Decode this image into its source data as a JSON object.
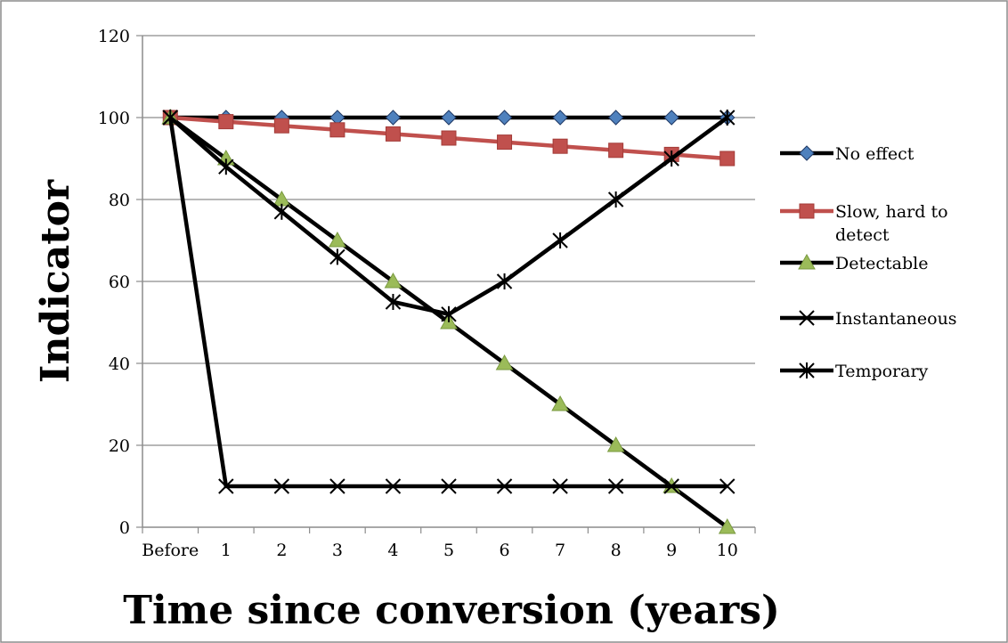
{
  "chart_data": {
    "type": "line",
    "xlabel": "Time since conversion (years)",
    "ylabel": "Indicator",
    "categories": [
      "Before",
      "1",
      "2",
      "3",
      "4",
      "5",
      "6",
      "7",
      "8",
      "9",
      "10"
    ],
    "ylim": [
      0,
      120
    ],
    "yticks": [
      0,
      20,
      40,
      60,
      80,
      100,
      120
    ],
    "grid": "horizontal",
    "legend_position": "right",
    "series": [
      {
        "name": "No effect",
        "color": "#000000",
        "marker": "diamond",
        "marker_color": "#4f81bd",
        "values": [
          100,
          100,
          100,
          100,
          100,
          100,
          100,
          100,
          100,
          100,
          100
        ]
      },
      {
        "name": "Slow, hard to detect",
        "color": "#c0504d",
        "marker": "square",
        "marker_color": "#c0504d",
        "values": [
          100,
          99,
          98,
          97,
          96,
          95,
          94,
          93,
          92,
          91,
          90
        ]
      },
      {
        "name": "Detectable",
        "color": "#000000",
        "marker": "triangle",
        "marker_color": "#9bbb59",
        "values": [
          100,
          90,
          80,
          70,
          60,
          50,
          40,
          30,
          20,
          10,
          0
        ]
      },
      {
        "name": "Instantaneous",
        "color": "#000000",
        "marker": "x",
        "marker_color": "#000000",
        "values": [
          100,
          10,
          10,
          10,
          10,
          10,
          10,
          10,
          10,
          10,
          10
        ]
      },
      {
        "name": "Temporary",
        "color": "#000000",
        "marker": "star",
        "marker_color": "#000000",
        "values": [
          100,
          88,
          77,
          66,
          55,
          52,
          60,
          70,
          80,
          90,
          100
        ]
      }
    ]
  }
}
